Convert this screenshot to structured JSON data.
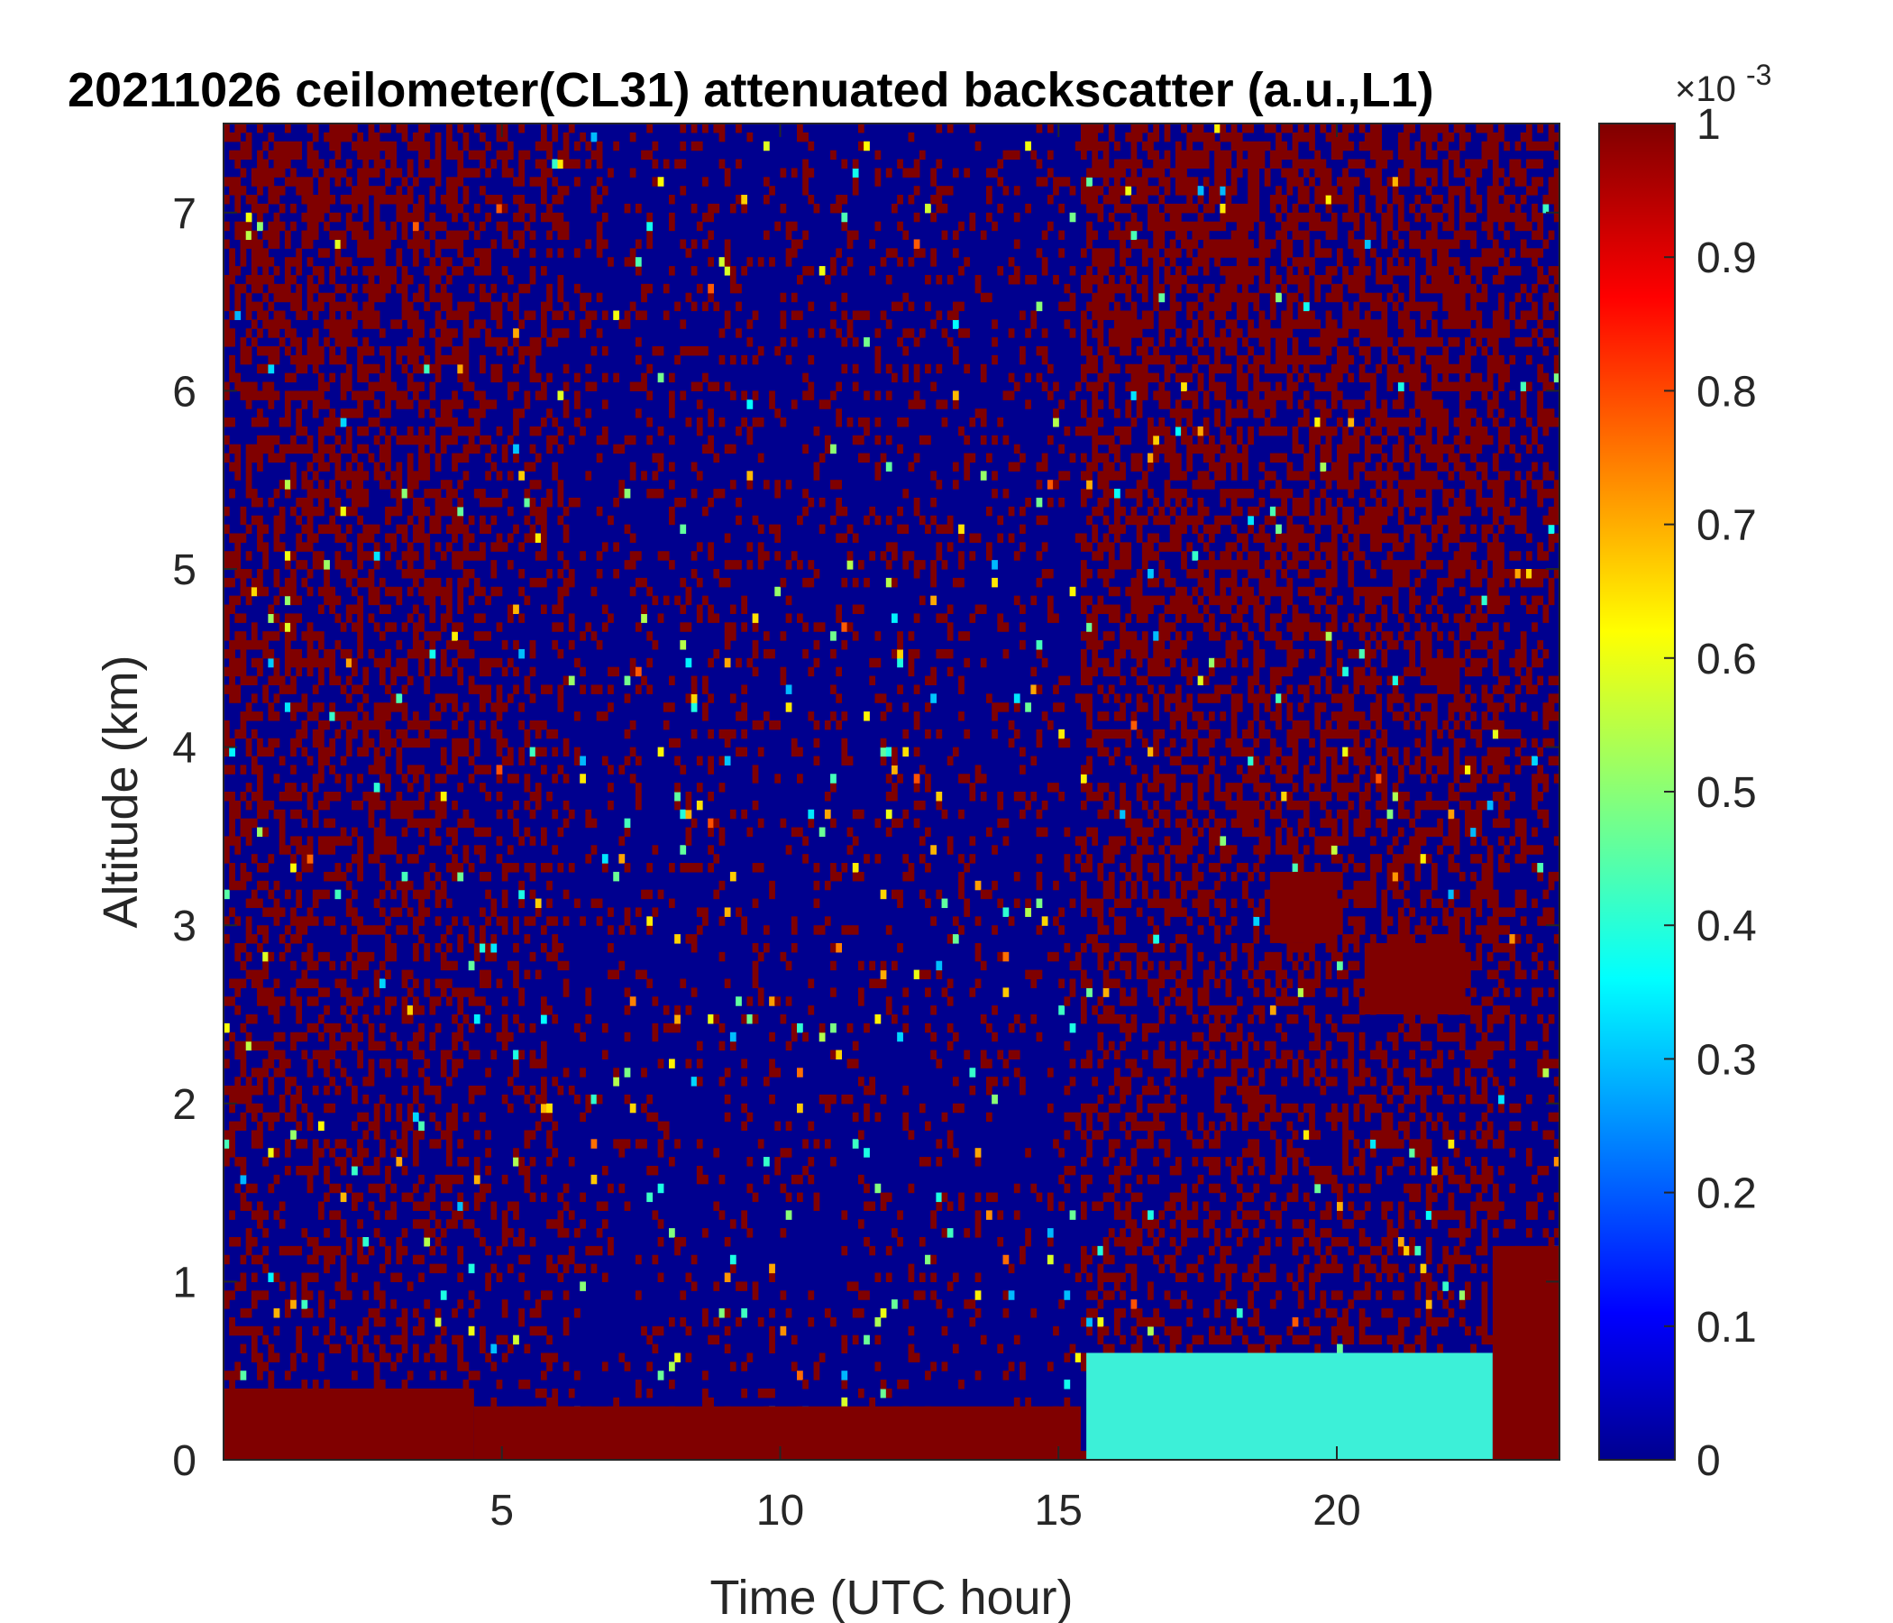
{
  "chart_data": {
    "type": "heatmap",
    "title": "20211026 ceilometer(CL31) attenuated backscatter (a.u.,L1)",
    "xlabel": "Time (UTC hour)",
    "ylabel": "Altitude (km)",
    "xlim": [
      0,
      24
    ],
    "ylim": [
      0,
      7.5
    ],
    "x_ticks": [
      5,
      10,
      15,
      20
    ],
    "x_tick_labels": [
      "5",
      "10",
      "15",
      "20"
    ],
    "y_ticks": [
      0,
      1,
      2,
      3,
      4,
      5,
      6,
      7
    ],
    "y_tick_labels": [
      "0",
      "1",
      "2",
      "3",
      "4",
      "5",
      "6",
      "7"
    ],
    "colorbar": {
      "colormap": "jet",
      "clim": [
        0,
        1
      ],
      "ticks": [
        0,
        0.1,
        0.2,
        0.3,
        0.4,
        0.5,
        0.6,
        0.7,
        0.8,
        0.9,
        1
      ],
      "tick_labels": [
        "0",
        "0.1",
        "0.2",
        "0.3",
        "0.4",
        "0.5",
        "0.6",
        "0.7",
        "0.8",
        "0.9",
        "1"
      ],
      "exponent_label": "×10",
      "exponent_power": "-3"
    },
    "grid": false,
    "features": [
      {
        "description_hours": [
          0,
          4.5
        ],
        "altitude_km": [
          0,
          0.4
        ],
        "level": "saturated"
      },
      {
        "description_hours": [
          4.5,
          15.4
        ],
        "altitude_km": [
          0,
          0.3
        ],
        "level": "saturated"
      },
      {
        "description_hours": [
          15.5,
          22.8
        ],
        "altitude_km": [
          0,
          0.6
        ],
        "level": "0.3-0.5"
      },
      {
        "description_hours": [
          22.8,
          24
        ],
        "altitude_km": [
          0,
          1.2
        ],
        "level": "saturated"
      },
      {
        "description_hours": [
          18.8,
          20
        ],
        "altitude_km": [
          2.9,
          3.3
        ],
        "level": "saturated"
      },
      {
        "description_hours": [
          20.5,
          22.3
        ],
        "altitude_km": [
          2.5,
          2.9
        ],
        "level": "saturated"
      }
    ]
  }
}
